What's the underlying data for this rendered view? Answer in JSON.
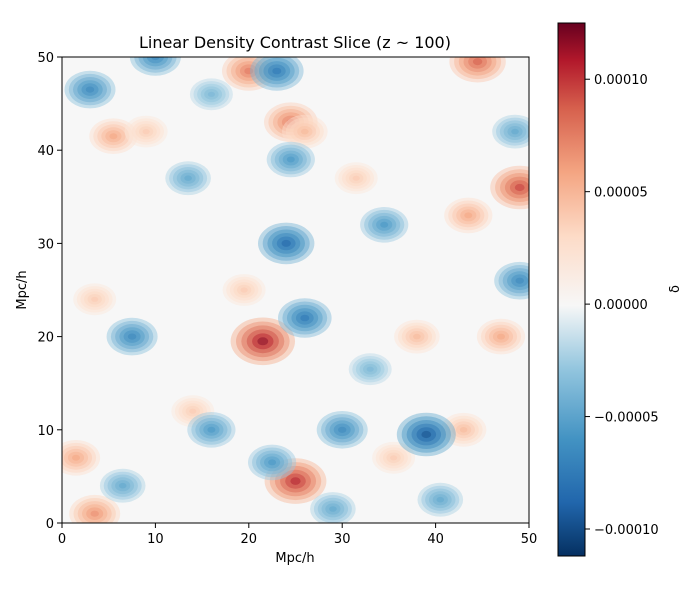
{
  "chart_data": {
    "type": "heatmap",
    "title": "Linear Density Contrast Slice (z ~ 100)",
    "xlabel": "Mpc/h",
    "ylabel": "Mpc/h",
    "xlim": [
      0,
      50
    ],
    "ylim": [
      0,
      50
    ],
    "x_ticks": [
      "0",
      "10",
      "20",
      "30",
      "40",
      "50"
    ],
    "y_ticks": [
      "0",
      "10",
      "20",
      "30",
      "40",
      "50"
    ],
    "colormap": "RdBu_r",
    "colorbar": {
      "label": "δ",
      "range": [
        -0.000112,
        0.000125
      ],
      "ticks": [
        "−0.00010",
        "−0.00005",
        "0.00000",
        "0.00005",
        "0.00010"
      ],
      "tick_values": [
        -0.0001,
        -5e-05,
        0,
        5e-05,
        0.0001
      ]
    },
    "features": [
      {
        "x": 21.5,
        "y": 19.5,
        "delta": 0.00012
      },
      {
        "x": 25,
        "y": 4.5,
        "delta": 0.00011
      },
      {
        "x": 49,
        "y": 36,
        "delta": 0.0001
      },
      {
        "x": 44.5,
        "y": 49.5,
        "delta": 9e-05
      },
      {
        "x": 24.5,
        "y": 43,
        "delta": 8e-05
      },
      {
        "x": 20,
        "y": 48.5,
        "delta": 8e-05
      },
      {
        "x": 3.5,
        "y": 1,
        "delta": 7e-05
      },
      {
        "x": 5.5,
        "y": 41.5,
        "delta": 6e-05
      },
      {
        "x": 1.5,
        "y": 7,
        "delta": 6e-05
      },
      {
        "x": 43.5,
        "y": 33,
        "delta": 6e-05
      },
      {
        "x": 47,
        "y": 20,
        "delta": 6e-05
      },
      {
        "x": 38,
        "y": 20,
        "delta": 5e-05
      },
      {
        "x": 26,
        "y": 42,
        "delta": 5e-05
      },
      {
        "x": 9,
        "y": 42,
        "delta": 4e-05
      },
      {
        "x": 19.5,
        "y": 25,
        "delta": 4e-05
      },
      {
        "x": 43,
        "y": 10,
        "delta": 5e-05
      },
      {
        "x": 35.5,
        "y": 7,
        "delta": 4e-05
      },
      {
        "x": 31.5,
        "y": 37,
        "delta": 4e-05
      },
      {
        "x": 14,
        "y": 12,
        "delta": 4e-05
      },
      {
        "x": 3.5,
        "y": 24,
        "delta": 4e-05
      },
      {
        "x": 39,
        "y": 9.5,
        "delta": -0.0001
      },
      {
        "x": 24,
        "y": 30,
        "delta": -9e-05
      },
      {
        "x": 23,
        "y": 48.5,
        "delta": -8e-05
      },
      {
        "x": 26,
        "y": 22,
        "delta": -8e-05
      },
      {
        "x": 3,
        "y": 46.5,
        "delta": -7e-05
      },
      {
        "x": 7.5,
        "y": 20,
        "delta": -7e-05
      },
      {
        "x": 30,
        "y": 10,
        "delta": -7e-05
      },
      {
        "x": 49,
        "y": 26,
        "delta": -7e-05
      },
      {
        "x": 10,
        "y": 50,
        "delta": -7e-05
      },
      {
        "x": 34.5,
        "y": 32,
        "delta": -6e-05
      },
      {
        "x": 24.5,
        "y": 39,
        "delta": -6e-05
      },
      {
        "x": 22.5,
        "y": 6.5,
        "delta": -6e-05
      },
      {
        "x": 16,
        "y": 10,
        "delta": -6e-05
      },
      {
        "x": 29,
        "y": 1.5,
        "delta": -5e-05
      },
      {
        "x": 48.5,
        "y": 42,
        "delta": -5e-05
      },
      {
        "x": 40.5,
        "y": 2.5,
        "delta": -5e-05
      },
      {
        "x": 13.5,
        "y": 37,
        "delta": -5e-05
      },
      {
        "x": 6.5,
        "y": 4,
        "delta": -5e-05
      },
      {
        "x": 33,
        "y": 16.5,
        "delta": -4e-05
      },
      {
        "x": 16,
        "y": 46,
        "delta": -4e-05
      }
    ]
  }
}
